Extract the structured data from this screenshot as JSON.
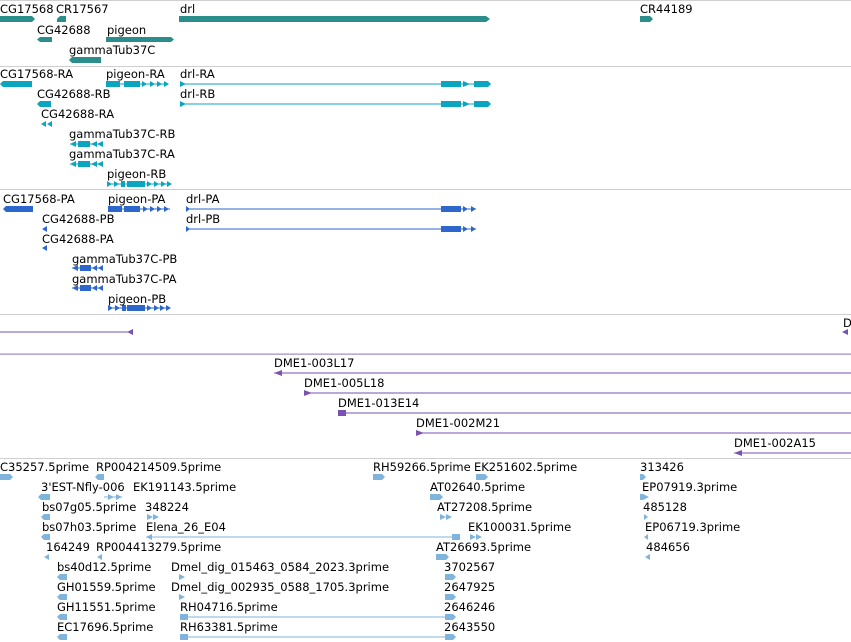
{
  "colors": {
    "gene": "#2b8e8c",
    "transcript": "#0aa6bf",
    "protein": "#2d67cc",
    "clone": "#7a52b0",
    "est": "#7fb4dd",
    "separator": "#cfcfcf"
  },
  "tracks": {
    "genes": {
      "labels": [
        "CG17568",
        "CR17567",
        "CG42688",
        "pigeon",
        "gammaTub37C",
        "drl",
        "CR44189"
      ]
    },
    "transcripts": {
      "labels": [
        "CG17568-RA",
        "pigeon-RA",
        "drl-RA",
        "CG42688-RB",
        "drl-RB",
        "CG42688-RA",
        "gammaTub37C-RB",
        "gammaTub37C-RA",
        "pigeon-RB"
      ]
    },
    "proteins": {
      "labels": [
        "CG17568-PA",
        "pigeon-PA",
        "drl-PA",
        "CG42688-PB",
        "drl-PB",
        "CG42688-PA",
        "gammaTub37C-PB",
        "gammaTub37C-PA",
        "pigeon-PB"
      ]
    },
    "clones_a": {
      "labels": [
        "D"
      ]
    },
    "clones_b": {
      "labels": [
        "DME1-003L17",
        "DME1-005L18",
        "DME1-013E14",
        "DME1-002M21",
        "DME1-002A15"
      ]
    },
    "ests": {
      "labels": [
        "C35257.5prime",
        "RP004214509.5prime",
        "RH59266.5prime",
        "EK251602.5prime",
        "313426",
        "3'EST-Nfly-006",
        "EK191143.5prime",
        "AT02640.5prime",
        "EP07919.3prime",
        "bs07g05.5prime",
        "348224",
        "AT27208.5prime",
        "485128",
        "bs07h03.5prime",
        "Elena_26_E04",
        "EK100031.5prime",
        "EP06719.3prime",
        "164249",
        "RP004413279.5prime",
        "AT26693.5prime",
        "484656",
        "bs40d12.5prime",
        "Dmel_dig_015463_0584_2023.3prime",
        "3702567",
        "GH01559.5prime",
        "Dmel_dig_002935_0588_1705.3prime",
        "2647925",
        "GH11551.5prime",
        "RH04716.5prime",
        "2646246",
        "EC17696.5prime",
        "RH63381.5prime",
        "2643550"
      ]
    }
  }
}
